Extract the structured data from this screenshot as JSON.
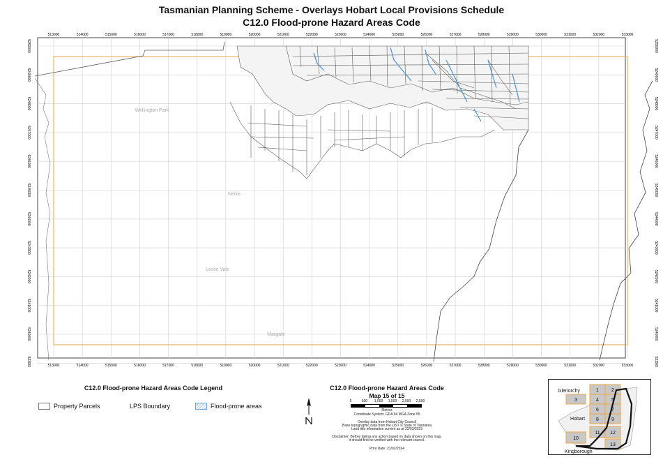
{
  "header": {
    "title_line1": "Tasmanian Planning Scheme - Overlays Hobart Local Provisions Schedule",
    "title_line2": "C12.0 Flood-prone Hazard Areas Code"
  },
  "map": {
    "x_ticks": [
      "513000",
      "514000",
      "515000",
      "516000",
      "517000",
      "518000",
      "519000",
      "520000",
      "521000",
      "522000",
      "523000",
      "524000",
      "525000",
      "526000",
      "527000",
      "528000",
      "529000",
      "530000",
      "531000",
      "532000",
      "533000"
    ],
    "y_ticks": [
      "5250000",
      "5249000",
      "5248000",
      "5247000",
      "5246000",
      "5245000",
      "5244000",
      "5243000",
      "5242000",
      "5241000",
      "5240000",
      "5239000"
    ],
    "place_labels": [
      {
        "text": "Wellington Park"
      },
      {
        "text": "Neika"
      },
      {
        "text": "Leslie Vale"
      },
      {
        "text": "Margate"
      }
    ],
    "colors": {
      "lps_boundary": "#e8a64a",
      "parcels": "#5a5a5a",
      "flood": "#4a90d9",
      "grid": "#cfcfcf"
    }
  },
  "legend": {
    "title": "C12.0 Flood-prone Hazard Areas Code Legend",
    "property_parcels": "Property Parcels",
    "lps_boundary": "LPS Boundary",
    "flood_prone": "Flood-prone areas"
  },
  "map_info": {
    "title": "C12.0 Flood-prone Hazard Areas Code",
    "subtitle": "Map 15 of 15",
    "scale_labels": [
      "0",
      "500",
      "1,000",
      "1,500",
      "2,000",
      "2,500"
    ],
    "scale_unit": "Metres",
    "coord": "Coordinate System: GDA 94 MGA Zone 55",
    "source1": "Overlay data from Hobart City Council",
    "source2": "Base topographic data from the LIST © State of Tasmania",
    "source3": "Land title information current as at 22/03/2023",
    "disclaimer1": "Disclaimer: Before taking any action based on data shown on this map,",
    "disclaimer2": "it should first be verified with the relevant council.",
    "print_date": "Print Date: 21/02/2024"
  },
  "inset": {
    "glenorchy": "Glenorchy",
    "hobart": "Hobart",
    "kingborough": "Kingborough",
    "tiles": [
      "1",
      "2",
      "3",
      "4",
      "5",
      "6",
      "7",
      "8",
      "9",
      "10",
      "11",
      "12",
      "13"
    ]
  }
}
